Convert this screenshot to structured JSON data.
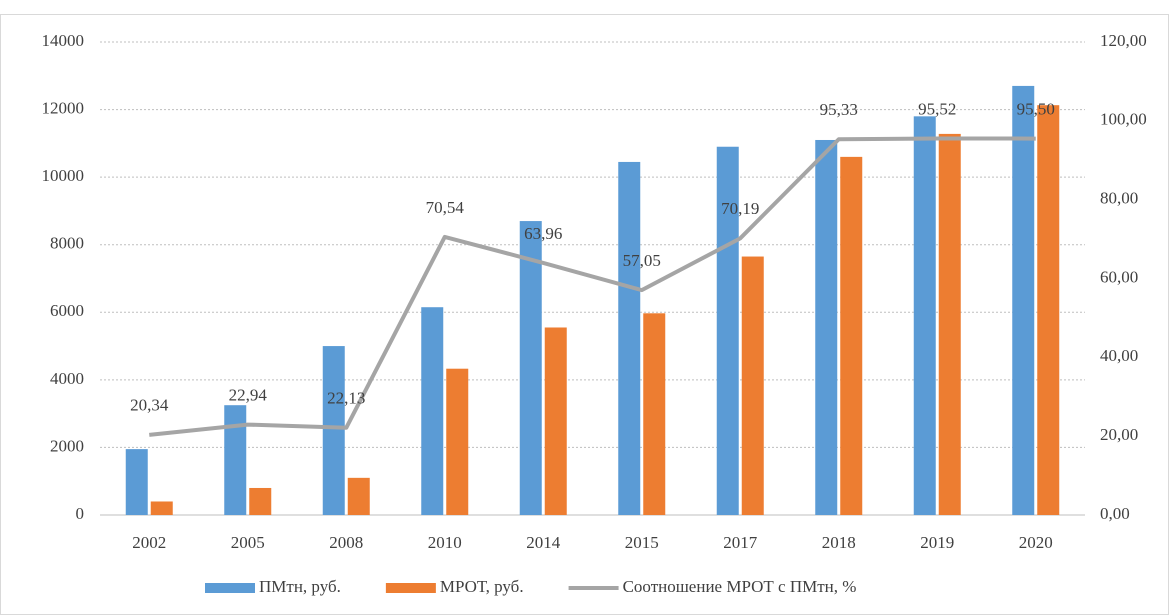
{
  "chart_data": {
    "type": "bar",
    "categories": [
      "2002",
      "2005",
      "2008",
      "2010",
      "2014",
      "2015",
      "2017",
      "2018",
      "2019",
      "2020"
    ],
    "series": [
      {
        "name": "ПМтн, руб.",
        "color": "#5b9bd5",
        "values": [
          1950,
          3250,
          5000,
          6150,
          8700,
          10450,
          10900,
          11100,
          11800,
          12700
        ]
      },
      {
        "name": "МРОТ, руб.",
        "color": "#ed7d31",
        "values": [
          400,
          800,
          1100,
          4330,
          5550,
          5970,
          7650,
          10600,
          11280,
          12130
        ]
      },
      {
        "name": "Соотношение  МРОТ с ПМтн, %",
        "color": "#a5a5a5",
        "type": "line",
        "axis": "y2",
        "values": [
          20.34,
          22.94,
          22.13,
          70.54,
          63.96,
          57.05,
          70.19,
          95.33,
          95.52,
          95.5
        ],
        "value_labels": [
          "20,34",
          "22,94",
          "22,13",
          "70,54",
          "63,96",
          "57,05",
          "70,19",
          "95,33",
          "95,52",
          "95,50"
        ]
      }
    ],
    "ylim": [
      0,
      14000
    ],
    "yticks": [
      0,
      2000,
      4000,
      6000,
      8000,
      10000,
      12000,
      14000
    ],
    "y2lim": [
      0,
      120
    ],
    "y2ticks": [
      {
        "value": 0,
        "label": "0,00"
      },
      {
        "value": 20,
        "label": "20,00"
      },
      {
        "value": 40,
        "label": "40,00"
      },
      {
        "value": 60,
        "label": "60,00"
      },
      {
        "value": 80,
        "label": "80,00"
      },
      {
        "value": 100,
        "label": "100,00"
      },
      {
        "value": 120,
        "label": "120,00"
      }
    ],
    "grid": true,
    "legend": "bottom"
  }
}
